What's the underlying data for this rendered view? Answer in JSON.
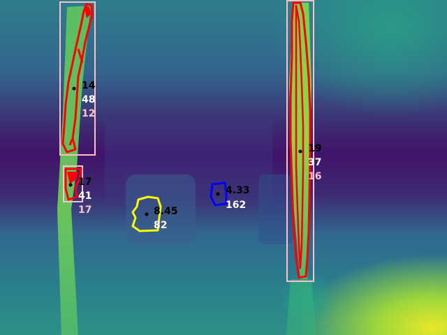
{
  "view": {
    "type": "depth-map-detection-overlay",
    "colormap": "viridis"
  },
  "colors": {
    "box_outline": "#ffc0cb",
    "contour_red": "#ff0000",
    "contour_yellow": "#ffff00",
    "contour_blue": "#0000ff",
    "center_dot": "#000000",
    "text_primary": "#000000",
    "text_secondary": "#ffffff",
    "text_tertiary": "#ffc0cb"
  },
  "detections": [
    {
      "id": "left-upper",
      "contour_color": "red",
      "has_box": true,
      "labels": [
        "14",
        "48",
        "12"
      ]
    },
    {
      "id": "left-lower",
      "contour_color": "red",
      "has_box": true,
      "labels": [
        "17",
        "41",
        "17"
      ]
    },
    {
      "id": "right-pole",
      "contour_color": "red",
      "has_box": true,
      "labels": [
        "19",
        "37",
        "16"
      ]
    },
    {
      "id": "yellow-object",
      "contour_color": "yellow",
      "has_box": false,
      "labels": [
        "8.45",
        "82"
      ]
    },
    {
      "id": "blue-object",
      "contour_color": "blue",
      "has_box": false,
      "labels": [
        "4.33",
        "162"
      ]
    }
  ]
}
